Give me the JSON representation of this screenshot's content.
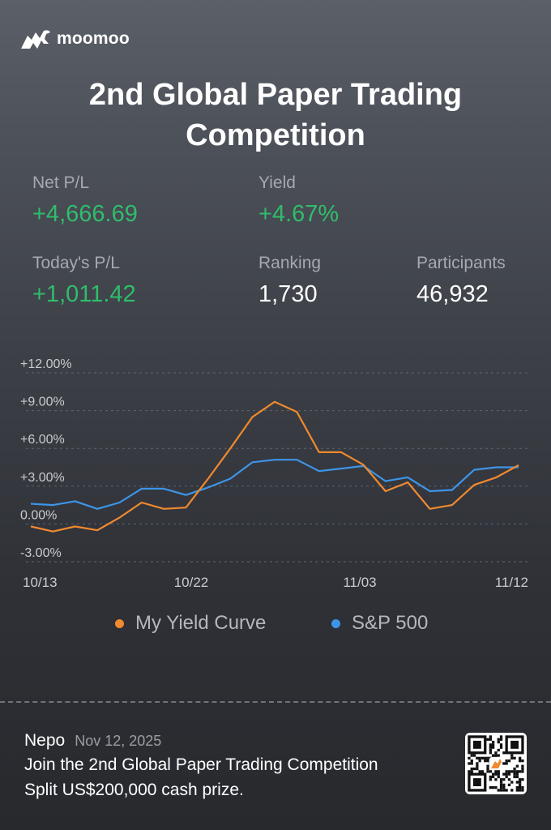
{
  "brand": {
    "name": "moomoo"
  },
  "title": {
    "line1": "2nd Global Paper Trading",
    "line2": "Competition"
  },
  "stats": {
    "net_pl": {
      "label": "Net P/L",
      "value": "+4,666.69"
    },
    "yield": {
      "label": "Yield",
      "value": "+4.67%"
    },
    "today_pl": {
      "label": "Today's P/L",
      "value": "+1,011.42"
    },
    "ranking": {
      "label": "Ranking",
      "value": "1,730"
    },
    "participants": {
      "label": "Participants",
      "value": "46,932"
    }
  },
  "colors": {
    "accent_green": "#2fbd6b",
    "my_yield": "#f0892f",
    "sp500": "#3d95e8"
  },
  "chart_data": {
    "type": "line",
    "x_tick_labels": [
      "10/13",
      "10/22",
      "11/03",
      "11/12"
    ],
    "y_tick_labels": [
      "+12.00%",
      "+9.00%",
      "+6.00%",
      "+3.00%",
      "0.00%",
      "-3.00%"
    ],
    "ylim": [
      -3,
      12
    ],
    "grid": true,
    "legend_position": "bottom",
    "series": [
      {
        "name": "My Yield Curve",
        "color": "#f0892f",
        "values": [
          -0.2,
          -0.6,
          -0.2,
          -0.5,
          0.5,
          1.7,
          1.2,
          1.3,
          3.6,
          6.0,
          8.5,
          9.7,
          8.9,
          5.7,
          5.7,
          4.7,
          2.6,
          3.3,
          1.2,
          1.5,
          3.1,
          3.7,
          4.67
        ]
      },
      {
        "name": "S&P 500",
        "color": "#3d95e8",
        "values": [
          1.6,
          1.5,
          1.8,
          1.2,
          1.7,
          2.8,
          2.8,
          2.3,
          2.9,
          3.6,
          4.9,
          5.1,
          5.1,
          4.2,
          4.4,
          4.6,
          3.4,
          3.7,
          2.6,
          2.7,
          4.3,
          4.5,
          4.5
        ]
      }
    ]
  },
  "legend": {
    "my_yield_label": "My Yield Curve",
    "sp500_label": "S&P 500"
  },
  "footer": {
    "user_name": "Nepo",
    "date": "Nov 12, 2025",
    "line1": "Join the 2nd Global Paper Trading Competition",
    "line2": "Split US$200,000 cash prize."
  }
}
